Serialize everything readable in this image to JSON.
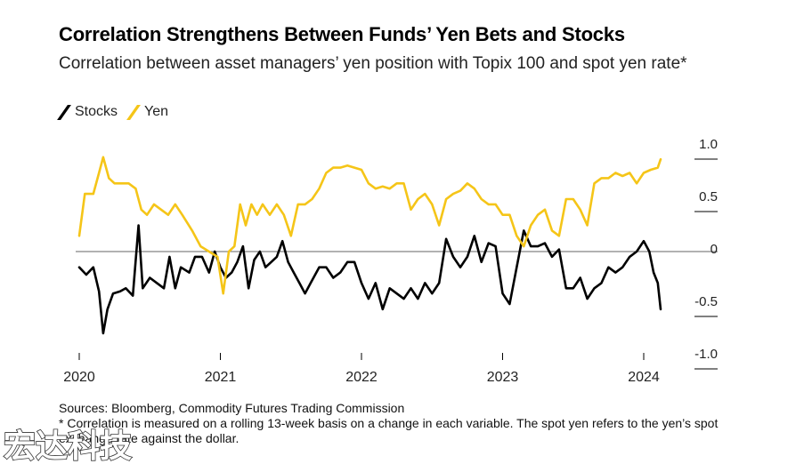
{
  "header": {
    "title": "Correlation Strengthens Between Funds’ Yen Bets and Stocks",
    "subtitle": "Correlation between asset managers’ yen position with Topix 100 and spot yen rate*"
  },
  "colors": {
    "stocks": "#000000",
    "yen": "#f5c518",
    "zero_line": "#666666",
    "axis": "#000000"
  },
  "footer": {
    "source": "Sources: Bloomberg, Commodity Futures Trading Commission",
    "note": "* Correlation is measured on a rolling 13-week basis on a change in each variable. The spot yen refers to the yen’s spot exchange rate against the dollar."
  },
  "watermark": {
    "text": "宏达科技"
  },
  "chart_data": {
    "type": "line",
    "title": "Correlation Strengthens Between Funds’ Yen Bets and Stocks",
    "subtitle": "Correlation between asset managers’ yen position with Topix 100 and spot yen rate*",
    "xlabel": "",
    "ylabel": "",
    "xlim": [
      2020.0,
      2024.15
    ],
    "ylim": [
      -1.0,
      1.0
    ],
    "y_ticks": [
      1.0,
      0.5,
      0,
      -0.5,
      -1.0
    ],
    "y_tick_labels": [
      "1.0",
      "0.5",
      "0",
      "-0.5",
      "-1.0"
    ],
    "x_ticks": [
      2020,
      2021,
      2022,
      2023,
      2024
    ],
    "x_tick_labels": [
      "2020",
      "2021",
      "2022",
      "2023",
      "2024"
    ],
    "axis_side": "right",
    "grid": false,
    "zero_line": true,
    "legend": "top-left",
    "series": [
      {
        "name": "Stocks",
        "color": "#000000",
        "points": [
          [
            2020.0,
            -0.15
          ],
          [
            2020.05,
            -0.22
          ],
          [
            2020.1,
            -0.15
          ],
          [
            2020.14,
            -0.38
          ],
          [
            2020.17,
            -0.78
          ],
          [
            2020.2,
            -0.55
          ],
          [
            2020.24,
            -0.4
          ],
          [
            2020.29,
            -0.38
          ],
          [
            2020.33,
            -0.35
          ],
          [
            2020.38,
            -0.42
          ],
          [
            2020.42,
            0.25
          ],
          [
            2020.45,
            -0.35
          ],
          [
            2020.5,
            -0.25
          ],
          [
            2020.55,
            -0.3
          ],
          [
            2020.6,
            -0.35
          ],
          [
            2020.64,
            -0.05
          ],
          [
            2020.68,
            -0.35
          ],
          [
            2020.72,
            -0.15
          ],
          [
            2020.78,
            -0.2
          ],
          [
            2020.82,
            -0.05
          ],
          [
            2020.87,
            -0.05
          ],
          [
            2020.92,
            -0.2
          ],
          [
            2020.96,
            0.0
          ],
          [
            2021.0,
            -0.15
          ],
          [
            2021.04,
            -0.25
          ],
          [
            2021.08,
            -0.2
          ],
          [
            2021.12,
            -0.1
          ],
          [
            2021.16,
            0.05
          ],
          [
            2021.2,
            -0.35
          ],
          [
            2021.24,
            -0.08
          ],
          [
            2021.28,
            0.0
          ],
          [
            2021.32,
            -0.15
          ],
          [
            2021.36,
            -0.1
          ],
          [
            2021.4,
            -0.05
          ],
          [
            2021.44,
            0.1
          ],
          [
            2021.48,
            -0.1
          ],
          [
            2021.52,
            -0.2
          ],
          [
            2021.56,
            -0.3
          ],
          [
            2021.6,
            -0.4
          ],
          [
            2021.64,
            -0.3
          ],
          [
            2021.7,
            -0.15
          ],
          [
            2021.75,
            -0.15
          ],
          [
            2021.8,
            -0.25
          ],
          [
            2021.85,
            -0.2
          ],
          [
            2021.9,
            -0.1
          ],
          [
            2021.95,
            -0.1
          ],
          [
            2022.0,
            -0.3
          ],
          [
            2022.05,
            -0.45
          ],
          [
            2022.1,
            -0.3
          ],
          [
            2022.15,
            -0.55
          ],
          [
            2022.2,
            -0.35
          ],
          [
            2022.25,
            -0.4
          ],
          [
            2022.3,
            -0.45
          ],
          [
            2022.35,
            -0.35
          ],
          [
            2022.4,
            -0.45
          ],
          [
            2022.45,
            -0.3
          ],
          [
            2022.5,
            -0.4
          ],
          [
            2022.55,
            -0.3
          ],
          [
            2022.6,
            0.12
          ],
          [
            2022.65,
            -0.05
          ],
          [
            2022.7,
            -0.15
          ],
          [
            2022.75,
            -0.05
          ],
          [
            2022.8,
            0.15
          ],
          [
            2022.85,
            -0.1
          ],
          [
            2022.9,
            0.08
          ],
          [
            2022.95,
            0.05
          ],
          [
            2023.0,
            -0.4
          ],
          [
            2023.05,
            -0.5
          ],
          [
            2023.1,
            -0.15
          ],
          [
            2023.15,
            0.2
          ],
          [
            2023.2,
            0.05
          ],
          [
            2023.25,
            0.05
          ],
          [
            2023.3,
            0.08
          ],
          [
            2023.35,
            -0.05
          ],
          [
            2023.4,
            0.02
          ],
          [
            2023.45,
            -0.35
          ],
          [
            2023.5,
            -0.35
          ],
          [
            2023.55,
            -0.25
          ],
          [
            2023.6,
            -0.45
          ],
          [
            2023.65,
            -0.35
          ],
          [
            2023.7,
            -0.3
          ],
          [
            2023.75,
            -0.15
          ],
          [
            2023.8,
            -0.2
          ],
          [
            2023.85,
            -0.15
          ],
          [
            2023.9,
            -0.05
          ],
          [
            2023.95,
            0.0
          ],
          [
            2024.0,
            0.1
          ],
          [
            2024.04,
            0.0
          ],
          [
            2024.07,
            -0.2
          ],
          [
            2024.1,
            -0.3
          ],
          [
            2024.12,
            -0.55
          ]
        ]
      },
      {
        "name": "Yen",
        "color": "#f5c518",
        "points": [
          [
            2020.0,
            0.15
          ],
          [
            2020.04,
            0.55
          ],
          [
            2020.1,
            0.55
          ],
          [
            2020.14,
            0.75
          ],
          [
            2020.17,
            0.9
          ],
          [
            2020.21,
            0.7
          ],
          [
            2020.25,
            0.65
          ],
          [
            2020.3,
            0.65
          ],
          [
            2020.35,
            0.65
          ],
          [
            2020.4,
            0.6
          ],
          [
            2020.44,
            0.4
          ],
          [
            2020.48,
            0.35
          ],
          [
            2020.53,
            0.45
          ],
          [
            2020.58,
            0.4
          ],
          [
            2020.63,
            0.35
          ],
          [
            2020.68,
            0.45
          ],
          [
            2020.73,
            0.35
          ],
          [
            2020.8,
            0.2
          ],
          [
            2020.86,
            0.05
          ],
          [
            2020.92,
            0.0
          ],
          [
            2020.98,
            -0.05
          ],
          [
            2021.02,
            -0.4
          ],
          [
            2021.06,
            0.0
          ],
          [
            2021.1,
            0.05
          ],
          [
            2021.14,
            0.45
          ],
          [
            2021.18,
            0.25
          ],
          [
            2021.22,
            0.45
          ],
          [
            2021.26,
            0.35
          ],
          [
            2021.3,
            0.45
          ],
          [
            2021.35,
            0.35
          ],
          [
            2021.4,
            0.45
          ],
          [
            2021.45,
            0.35
          ],
          [
            2021.5,
            0.15
          ],
          [
            2021.55,
            0.45
          ],
          [
            2021.6,
            0.45
          ],
          [
            2021.65,
            0.5
          ],
          [
            2021.7,
            0.6
          ],
          [
            2021.75,
            0.75
          ],
          [
            2021.8,
            0.8
          ],
          [
            2021.85,
            0.8
          ],
          [
            2021.9,
            0.82
          ],
          [
            2021.95,
            0.8
          ],
          [
            2022.0,
            0.78
          ],
          [
            2022.05,
            0.65
          ],
          [
            2022.1,
            0.6
          ],
          [
            2022.15,
            0.62
          ],
          [
            2022.2,
            0.6
          ],
          [
            2022.25,
            0.65
          ],
          [
            2022.3,
            0.65
          ],
          [
            2022.35,
            0.4
          ],
          [
            2022.4,
            0.5
          ],
          [
            2022.45,
            0.55
          ],
          [
            2022.5,
            0.45
          ],
          [
            2022.55,
            0.25
          ],
          [
            2022.6,
            0.5
          ],
          [
            2022.65,
            0.55
          ],
          [
            2022.7,
            0.58
          ],
          [
            2022.75,
            0.65
          ],
          [
            2022.8,
            0.6
          ],
          [
            2022.85,
            0.5
          ],
          [
            2022.9,
            0.45
          ],
          [
            2022.95,
            0.45
          ],
          [
            2023.0,
            0.35
          ],
          [
            2023.05,
            0.35
          ],
          [
            2023.1,
            0.15
          ],
          [
            2023.15,
            0.05
          ],
          [
            2023.2,
            0.25
          ],
          [
            2023.25,
            0.35
          ],
          [
            2023.3,
            0.4
          ],
          [
            2023.35,
            0.2
          ],
          [
            2023.4,
            0.15
          ],
          [
            2023.45,
            0.5
          ],
          [
            2023.5,
            0.5
          ],
          [
            2023.55,
            0.4
          ],
          [
            2023.6,
            0.25
          ],
          [
            2023.65,
            0.65
          ],
          [
            2023.7,
            0.7
          ],
          [
            2023.75,
            0.7
          ],
          [
            2023.8,
            0.75
          ],
          [
            2023.85,
            0.72
          ],
          [
            2023.9,
            0.75
          ],
          [
            2023.95,
            0.65
          ],
          [
            2024.0,
            0.75
          ],
          [
            2024.05,
            0.78
          ],
          [
            2024.1,
            0.8
          ],
          [
            2024.12,
            0.88
          ]
        ]
      }
    ]
  }
}
